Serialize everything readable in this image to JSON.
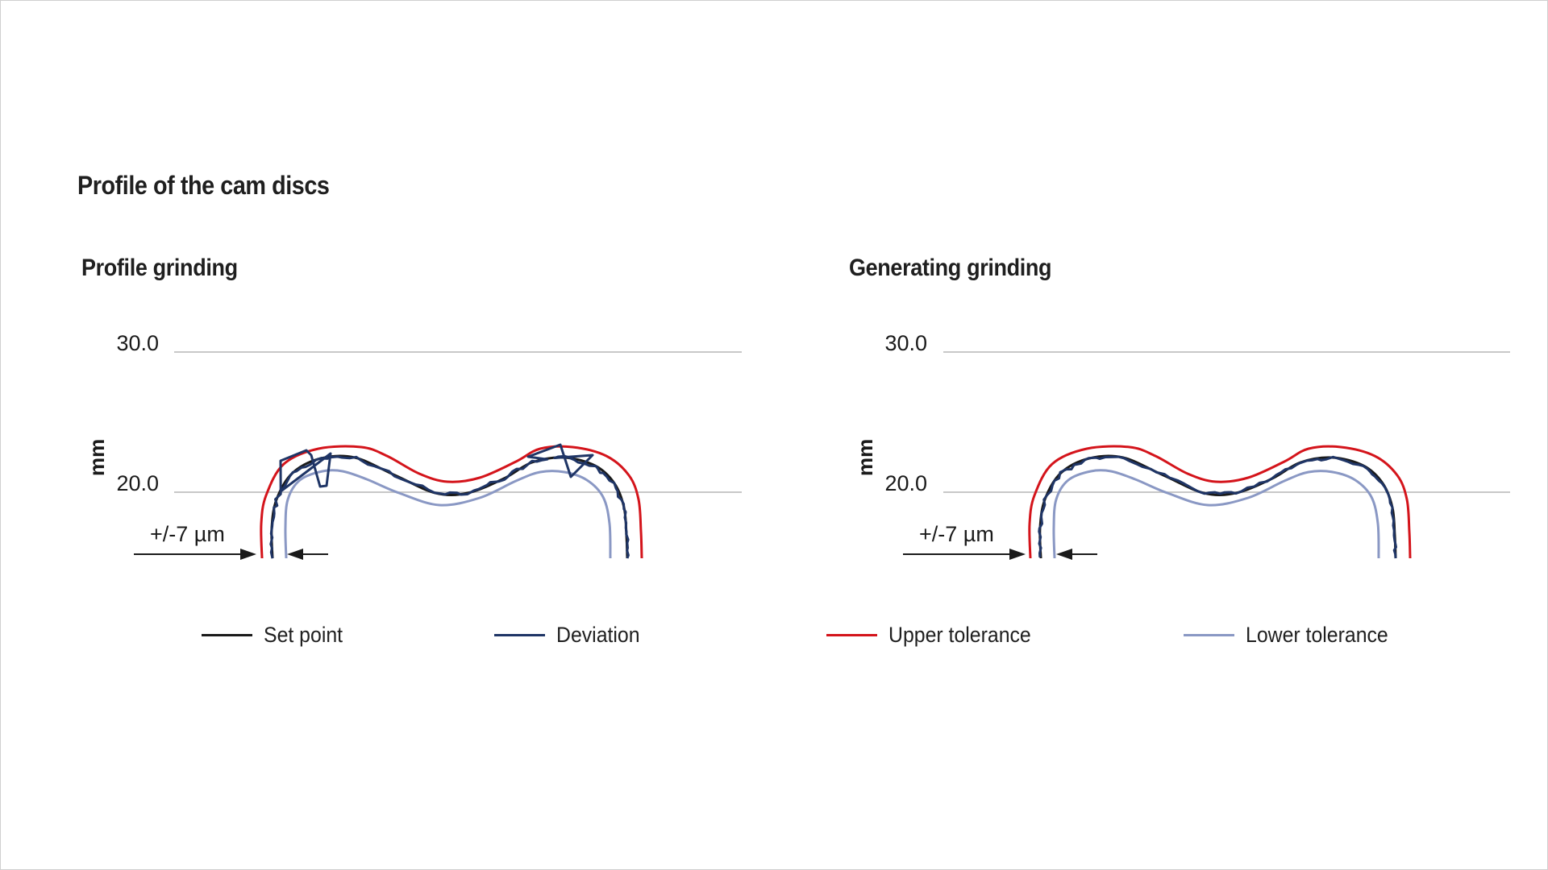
{
  "title": "Profile of the cam discs",
  "colors": {
    "set_point": "#1a1a1a",
    "deviation": "#1f3566",
    "upper_tolerance": "#d4141b",
    "lower_tolerance": "#8a98c4",
    "gridline": "#c8c8c8"
  },
  "legend": [
    {
      "label": "Set point",
      "color": "#1a1a1a"
    },
    {
      "label": "Deviation",
      "color": "#1f3566"
    },
    {
      "label": "Upper tolerance",
      "color": "#d4141b"
    },
    {
      "label": "Lower tolerance",
      "color": "#8a98c4"
    }
  ],
  "chart_data": [
    {
      "type": "line",
      "title": "Profile grinding",
      "ylabel": "mm",
      "yticks": [
        "30.0",
        "20.0"
      ],
      "ylim": [
        15.5,
        30.0
      ],
      "tolerance_annotation": "+/-7 µm",
      "series": [
        {
          "name": "Set point",
          "style": "smooth",
          "values": [
            18.0,
            21.0,
            22.0,
            20.0,
            22.4,
            18.0
          ]
        },
        {
          "name": "Deviation",
          "style": "noisy-large",
          "values": [
            18.0,
            22.4,
            21.7,
            19.6,
            22.7,
            18.0
          ]
        },
        {
          "name": "Upper tolerance",
          "style": "smooth",
          "values": [
            18.0,
            23.2,
            20.9,
            23.2,
            18.0
          ]
        },
        {
          "name": "Lower tolerance",
          "style": "smooth",
          "values": [
            18.0,
            21.5,
            19.0,
            21.5,
            18.0
          ]
        }
      ]
    },
    {
      "type": "line",
      "title": "Generating grinding",
      "ylabel": "mm",
      "yticks": [
        "30.0",
        "20.0"
      ],
      "ylim": [
        15.5,
        30.0
      ],
      "tolerance_annotation": "+/-7 µm",
      "series": [
        {
          "name": "Set point",
          "style": "smooth",
          "values": [
            18.0,
            22.4,
            20.0,
            22.4,
            18.0
          ]
        },
        {
          "name": "Deviation",
          "style": "noisy-small",
          "values": [
            18.0,
            22.5,
            19.7,
            22.6,
            18.0
          ]
        },
        {
          "name": "Upper tolerance",
          "style": "smooth",
          "values": [
            18.0,
            23.2,
            20.9,
            23.2,
            18.0
          ]
        },
        {
          "name": "Lower tolerance",
          "style": "smooth",
          "values": [
            18.0,
            21.5,
            19.0,
            21.5,
            18.0
          ]
        }
      ]
    }
  ]
}
